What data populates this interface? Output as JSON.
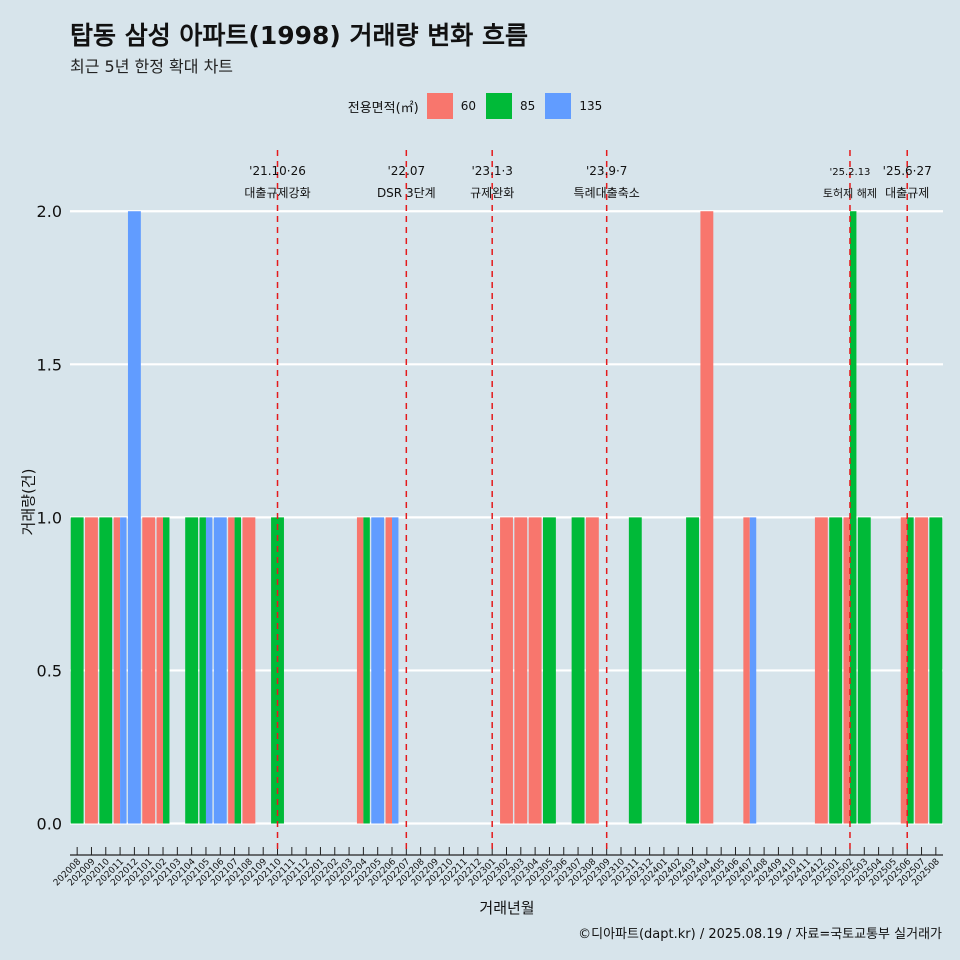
{
  "title": "탑동 삼성 아파트(1998) 거래량 변화 흐름",
  "subtitle": "최근 5년 한정 확대 차트",
  "caption": "©디아파트(dapt.kr) / 2025.08.19 / 자료=국토교통부 실거래가",
  "chart_data": {
    "type": "bar",
    "title": "탑동 삼성 아파트(1998) 거래량 변화 흐름",
    "subtitle": "최근 5년 한정 확대 차트",
    "xlabel": "거래년월",
    "ylabel": "거래량(건)",
    "ylim": [
      -0.08,
      2.2
    ],
    "yticks": [
      0.0,
      0.5,
      1.0,
      1.5,
      2.0
    ],
    "ytick_labels": [
      "0.0",
      "0.5",
      "1.0",
      "1.5",
      "2.0"
    ],
    "grid": true,
    "legend_title": "전용면적(㎡)",
    "legend_position": "top-center",
    "series": [
      {
        "name": "60",
        "color": "#F8766D"
      },
      {
        "name": "85",
        "color": "#00BA38"
      },
      {
        "name": "135",
        "color": "#619CFF"
      }
    ],
    "categories": [
      "202008",
      "202009",
      "202010",
      "202011",
      "202012",
      "202101",
      "202102",
      "202103",
      "202104",
      "202105",
      "202106",
      "202107",
      "202108",
      "202109",
      "202110",
      "202111",
      "202112",
      "202201",
      "202202",
      "202203",
      "202204",
      "202205",
      "202206",
      "202207",
      "202208",
      "202209",
      "202210",
      "202211",
      "202212",
      "202301",
      "202302",
      "202303",
      "202304",
      "202305",
      "202306",
      "202307",
      "202308",
      "202309",
      "202310",
      "202311",
      "202312",
      "202401",
      "202402",
      "202403",
      "202404",
      "202405",
      "202406",
      "202407",
      "202408",
      "202409",
      "202410",
      "202411",
      "202412",
      "202501",
      "202502",
      "202503",
      "202504",
      "202505",
      "202506",
      "202507",
      "202508"
    ],
    "bars": [
      {
        "category": "202008",
        "size": "85",
        "value": 1
      },
      {
        "category": "202009",
        "size": "60",
        "value": 1
      },
      {
        "category": "202010",
        "size": "85",
        "value": 1
      },
      {
        "category": "202011",
        "size": "60",
        "value": 1
      },
      {
        "category": "202011",
        "size": "135",
        "value": 1
      },
      {
        "category": "202012",
        "size": "135",
        "value": 2
      },
      {
        "category": "202101",
        "size": "60",
        "value": 1
      },
      {
        "category": "202102",
        "size": "60",
        "value": 1
      },
      {
        "category": "202102",
        "size": "85",
        "value": 1
      },
      {
        "category": "202104",
        "size": "85",
        "value": 1
      },
      {
        "category": "202105",
        "size": "85",
        "value": 1
      },
      {
        "category": "202105",
        "size": "135",
        "value": 1
      },
      {
        "category": "202106",
        "size": "135",
        "value": 1
      },
      {
        "category": "202107",
        "size": "60",
        "value": 1
      },
      {
        "category": "202107",
        "size": "85",
        "value": 1
      },
      {
        "category": "202108",
        "size": "60",
        "value": 1
      },
      {
        "category": "202110",
        "size": "85",
        "value": 1
      },
      {
        "category": "202204",
        "size": "60",
        "value": 1
      },
      {
        "category": "202204",
        "size": "85",
        "value": 1
      },
      {
        "category": "202205",
        "size": "135",
        "value": 1
      },
      {
        "category": "202206",
        "size": "60",
        "value": 1
      },
      {
        "category": "202206",
        "size": "135",
        "value": 1
      },
      {
        "category": "202302",
        "size": "60",
        "value": 1
      },
      {
        "category": "202303",
        "size": "60",
        "value": 1
      },
      {
        "category": "202304",
        "size": "60",
        "value": 1
      },
      {
        "category": "202305",
        "size": "85",
        "value": 1
      },
      {
        "category": "202307",
        "size": "85",
        "value": 1
      },
      {
        "category": "202308",
        "size": "60",
        "value": 1
      },
      {
        "category": "202311",
        "size": "85",
        "value": 1
      },
      {
        "category": "202403",
        "size": "85",
        "value": 1
      },
      {
        "category": "202404",
        "size": "60",
        "value": 2
      },
      {
        "category": "202407",
        "size": "60",
        "value": 1
      },
      {
        "category": "202407",
        "size": "135",
        "value": 1
      },
      {
        "category": "202412",
        "size": "60",
        "value": 1
      },
      {
        "category": "202501",
        "size": "85",
        "value": 1
      },
      {
        "category": "202502",
        "size": "60",
        "value": 1
      },
      {
        "category": "202502",
        "size": "85",
        "value": 2
      },
      {
        "category": "202503",
        "size": "85",
        "value": 1
      },
      {
        "category": "202506",
        "size": "60",
        "value": 1
      },
      {
        "category": "202506",
        "size": "85",
        "value": 1
      },
      {
        "category": "202507",
        "size": "60",
        "value": 1
      },
      {
        "category": "202508",
        "size": "85",
        "value": 1
      }
    ],
    "annotations": [
      {
        "category": "202110",
        "date": "'21.10·26",
        "text": "대출규제강화"
      },
      {
        "category": "202207",
        "date": "'22.07",
        "text": "DSR 3단계"
      },
      {
        "category": "202301",
        "date": "'23.1·3",
        "text": "규제완화"
      },
      {
        "category": "202309",
        "date": "'23.9·7",
        "text": "특례대출축소"
      },
      {
        "category": "202502",
        "date": "'25.2.13",
        "text": "토허제 해제"
      },
      {
        "category": "202506",
        "date": "'25.6·27",
        "text": "대출규제"
      }
    ],
    "reference_line_color": "#E41A1C"
  }
}
